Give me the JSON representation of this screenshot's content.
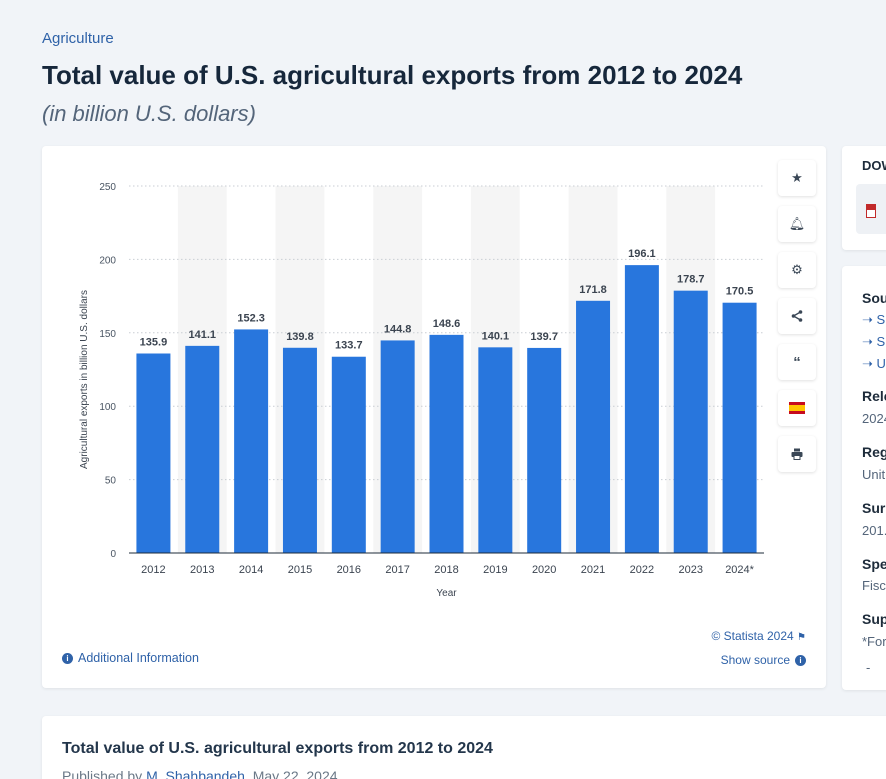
{
  "breadcrumb": "Agriculture",
  "title": "Total value of U.S. agricultural exports from 2012 to 2024",
  "subtitle": "(in billion U.S. dollars)",
  "chart_data": {
    "type": "bar",
    "categories": [
      "2012",
      "2013",
      "2014",
      "2015",
      "2016",
      "2017",
      "2018",
      "2019",
      "2020",
      "2021",
      "2022",
      "2023",
      "2024*"
    ],
    "values": [
      135.9,
      141.1,
      152.3,
      139.8,
      133.7,
      144.8,
      148.6,
      140.1,
      139.7,
      171.8,
      196.1,
      178.7,
      170.5
    ],
    "value_labels": [
      "135.9",
      "141.1",
      "152.3",
      "139.8",
      "133.7",
      "144.8",
      "148.6",
      "140.1",
      "139.7",
      "171.8",
      "196.1",
      "178.7",
      "170.5"
    ],
    "xlabel": "Year",
    "ylabel": "Agricultural exports in billion U.S. dollars",
    "ylim": [
      0,
      250
    ],
    "yticks": [
      0,
      50,
      100,
      150,
      200,
      250
    ],
    "ytick_labels": [
      "0",
      "50",
      "100",
      "150",
      "200",
      "250"
    ],
    "grid": true,
    "bar_color": "#2876dd"
  },
  "chart_footer": {
    "copyright": "© Statista 2024",
    "show_source": "Show source",
    "additional_info": "Additional Information"
  },
  "toolbar": {
    "icons": [
      "star-icon",
      "bell-icon",
      "gear-icon",
      "share-icon",
      "quote-icon",
      "spain-flag-icon",
      "print-icon"
    ]
  },
  "download": {
    "label": "DOW"
  },
  "info_panel": {
    "source_heading": "Sou",
    "source_links": [
      "S",
      "S",
      "U"
    ],
    "release_heading": "Rele",
    "release_value": "2024",
    "region_heading": "Reg",
    "region_value": "Unit",
    "survey_heading": "Sur",
    "survey_value": "201.",
    "special_heading": "Spe",
    "special_value": "Fisc",
    "supplementary_heading": "Sup",
    "supplementary_value": "*For",
    "dash": "-"
  },
  "publication": {
    "title": "Total value of U.S. agricultural exports from 2012 to 2024",
    "published_by": "Published by",
    "author": "M. Shahbandeh",
    "date": ", May 22, 2024"
  }
}
